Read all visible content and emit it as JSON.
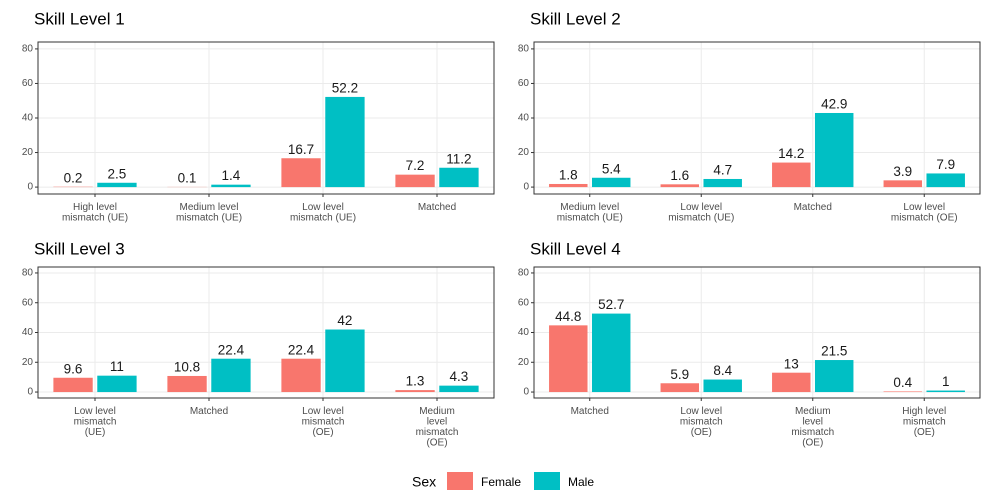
{
  "legend": {
    "title": "Sex"
  },
  "chart_data": [
    {
      "type": "bar",
      "title": "Skill Level 1",
      "categories": [
        "High level\nmismatch (UE)",
        "Medium level\nmismatch (UE)",
        "Low level\nmismatch (UE)",
        "Matched"
      ],
      "series": [
        {
          "name": "Female",
          "color": "#F8766D",
          "values": [
            0.2,
            0.1,
            16.7,
            7.2
          ]
        },
        {
          "name": "Male",
          "color": "#00BFC4",
          "values": [
            2.5,
            1.4,
            52.2,
            11.2
          ]
        }
      ],
      "ylim": [
        -4,
        84
      ],
      "yticks": [
        0,
        20,
        40,
        60,
        80
      ],
      "grid": true
    },
    {
      "type": "bar",
      "title": "Skill Level 2",
      "categories": [
        "Medium level\nmismatch (UE)",
        "Low level\nmismatch (UE)",
        "Matched",
        "Low level\nmismatch (OE)"
      ],
      "series": [
        {
          "name": "Female",
          "color": "#F8766D",
          "values": [
            1.8,
            1.6,
            14.2,
            3.9
          ]
        },
        {
          "name": "Male",
          "color": "#00BFC4",
          "values": [
            5.4,
            4.7,
            42.9,
            7.9
          ]
        }
      ],
      "ylim": [
        -4,
        84
      ],
      "yticks": [
        0,
        20,
        40,
        60,
        80
      ],
      "grid": true
    },
    {
      "type": "bar",
      "title": "Skill Level 3",
      "categories": [
        "Low level\nmismatch\n(UE)",
        "Matched",
        "Low level\nmismatch\n(OE)",
        "Medium\nlevel\nmismatch\n(OE)"
      ],
      "series": [
        {
          "name": "Female",
          "color": "#F8766D",
          "values": [
            9.6,
            10.8,
            22.4,
            1.3
          ]
        },
        {
          "name": "Male",
          "color": "#00BFC4",
          "values": [
            11,
            22.4,
            42,
            4.3
          ]
        }
      ],
      "ylim": [
        -4,
        84
      ],
      "yticks": [
        0,
        20,
        40,
        60,
        80
      ],
      "grid": true
    },
    {
      "type": "bar",
      "title": "Skill Level 4",
      "categories": [
        "Matched",
        "Low level\nmismatch\n(OE)",
        "Medium\nlevel\nmismatch\n(OE)",
        "High level\nmismatch\n(OE)"
      ],
      "series": [
        {
          "name": "Female",
          "color": "#F8766D",
          "values": [
            44.8,
            5.9,
            13,
            0.4
          ]
        },
        {
          "name": "Male",
          "color": "#00BFC4",
          "values": [
            52.7,
            8.4,
            21.5,
            1
          ]
        }
      ],
      "ylim": [
        -4,
        84
      ],
      "yticks": [
        0,
        20,
        40,
        60,
        80
      ],
      "grid": true
    }
  ]
}
